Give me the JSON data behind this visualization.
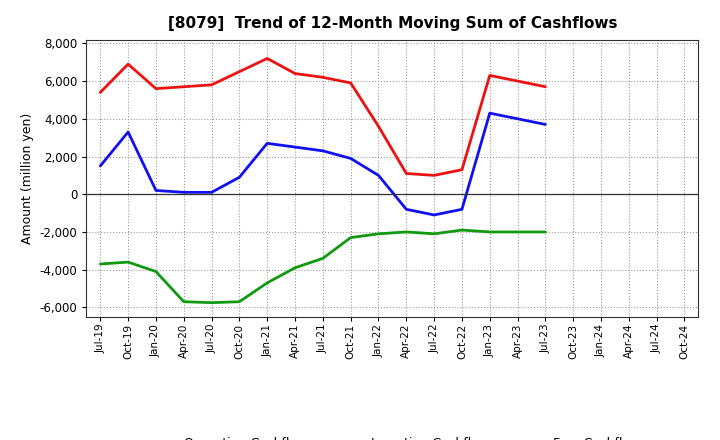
{
  "title": "[8079]  Trend of 12-Month Moving Sum of Cashflows",
  "ylabel": "Amount (million yen)",
  "xlabels": [
    "Jul-19",
    "Oct-19",
    "Jan-20",
    "Apr-20",
    "Jul-20",
    "Oct-20",
    "Jan-21",
    "Apr-21",
    "Jul-21",
    "Oct-21",
    "Jan-22",
    "Apr-22",
    "Jul-22",
    "Oct-22",
    "Jan-23",
    "Apr-23",
    "Jul-23",
    "Oct-23",
    "Jan-24",
    "Apr-24",
    "Jul-24",
    "Oct-24"
  ],
  "operating": [
    5400,
    6900,
    5600,
    5700,
    5800,
    6500,
    7200,
    6400,
    6200,
    5900,
    3600,
    1100,
    1000,
    1300,
    6300,
    6000,
    5700,
    null,
    null,
    null,
    null,
    null
  ],
  "investing": [
    -3700,
    -3600,
    -4100,
    -5700,
    -5750,
    -5700,
    -4700,
    -3900,
    -3400,
    -2300,
    -2100,
    -2000,
    -2100,
    -1900,
    -2000,
    -2000,
    -2000,
    null,
    null,
    null,
    null,
    null
  ],
  "free": [
    1500,
    3300,
    200,
    100,
    100,
    900,
    2700,
    2500,
    2300,
    1900,
    1000,
    -800,
    -1100,
    -800,
    4300,
    4000,
    3700,
    null,
    null,
    null,
    null,
    null
  ],
  "op_color": "#ee1111",
  "inv_color": "#119911",
  "free_color": "#1111ee",
  "ylim": [
    -6500,
    8200
  ],
  "yticks": [
    -6000,
    -4000,
    -2000,
    0,
    2000,
    4000,
    6000,
    8000
  ],
  "bg_color": "#ffffff",
  "grid_color": "#999999",
  "zero_line_color": "#333333",
  "linewidth": 2.0
}
